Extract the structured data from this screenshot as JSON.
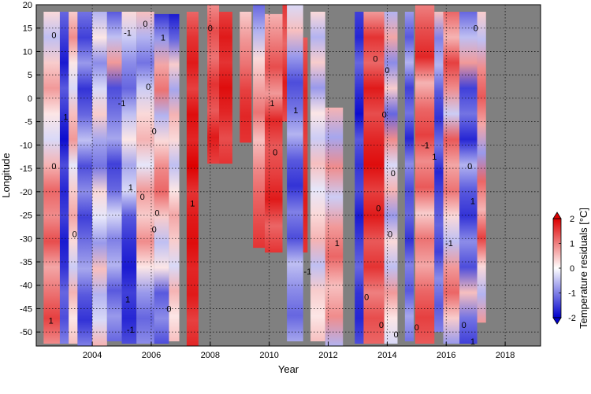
{
  "chart_data": {
    "type": "heatmap",
    "title": "",
    "xlabel": "Year",
    "ylabel": "Longitude",
    "xlim": [
      2002.1,
      2019.2
    ],
    "ylim": [
      -53,
      20
    ],
    "x_ticks": [
      2004,
      2006,
      2008,
      2010,
      2012,
      2014,
      2016,
      2018
    ],
    "y_ticks": [
      20,
      15,
      10,
      5,
      0,
      -5,
      -10,
      -15,
      -20,
      -25,
      -30,
      -35,
      -40,
      -45,
      -50
    ],
    "grid": true,
    "background_color": "#808080",
    "colorbar": {
      "label": "Temperature residuals [°C]",
      "min": -2,
      "max": 2,
      "ticks": [
        2,
        1,
        0,
        -1,
        -2
      ],
      "extend": "both",
      "colors": [
        "#0000cc",
        "#ffffff",
        "#dd0000"
      ]
    },
    "contour_levels": [
      -1,
      0,
      1
    ],
    "contour_label_values": [
      "0",
      "1",
      "-1"
    ],
    "data_strips": [
      {
        "x0": 2002.35,
        "x1": 2002.9,
        "y_top": 18.5,
        "y_bottom": -52.5,
        "values": [
          0.3,
          -0.5,
          0.4,
          0.8,
          0.2,
          -0.3,
          0.6,
          1.2,
          0.9,
          1.4,
          0.7,
          1.1,
          1.5,
          0.9
        ]
      },
      {
        "x0": 2002.9,
        "x1": 2003.2,
        "y_top": 18.5,
        "y_bottom": -52.5,
        "values": [
          -1.2,
          -1.5,
          -1.8,
          -1.3,
          -1.6,
          -1.9,
          -1.4,
          -1.7,
          -1.5,
          -1.8,
          -1.6,
          -1.2,
          -1.4,
          -1.0
        ]
      },
      {
        "x0": 2003.2,
        "x1": 2003.5,
        "y_top": 18.5,
        "y_bottom": -52.5,
        "values": [
          0.4,
          0.9,
          0.2,
          -0.3,
          0.5,
          0.8,
          -0.2,
          0.4,
          0.7,
          0.3,
          -0.4,
          0.6,
          0.2,
          0.5
        ]
      },
      {
        "x0": 2003.5,
        "x1": 2004.0,
        "y_top": 18.5,
        "y_bottom": -53.0,
        "values": [
          -1.1,
          -1.5,
          -0.8,
          -1.6,
          -1.2,
          -0.5,
          -1.4,
          -0.9,
          -1.5,
          -1.1,
          -0.7,
          -1.3,
          -1.6,
          -1.0
        ]
      },
      {
        "x0": 2004.0,
        "x1": 2004.5,
        "y_top": 18.5,
        "y_bottom": -53.0,
        "values": [
          -0.6,
          0.2,
          -0.9,
          -0.3,
          0.4,
          -0.7,
          -1.1,
          0.3,
          -0.2,
          -0.8,
          0.5,
          -0.6,
          -0.3,
          0.6
        ]
      },
      {
        "x0": 2004.5,
        "x1": 2005.0,
        "y_top": 18.5,
        "y_bottom": -52.0,
        "values": [
          -1.3,
          -0.5,
          0.8,
          -1.4,
          -1.1,
          -0.7,
          -1.5,
          -1.2,
          -0.3,
          -1.0,
          -0.6,
          -1.3,
          -0.8,
          -1.2
        ]
      },
      {
        "x0": 2005.0,
        "x1": 2005.5,
        "y_top": 18.5,
        "y_bottom": -52.5,
        "values": [
          0.3,
          -0.4,
          -0.9,
          -1.2,
          -0.5,
          0.2,
          -0.7,
          -0.3,
          -1.3,
          -1.6,
          -1.8,
          -1.5,
          -1.7,
          -1.4
        ]
      },
      {
        "x0": 2005.5,
        "x1": 2006.1,
        "y_top": 18.5,
        "y_bottom": -52.5,
        "values": [
          0.5,
          -0.6,
          -1.1,
          -0.4,
          0.3,
          0.6,
          -0.2,
          0.8,
          0.4,
          0.9,
          0.2,
          -0.8,
          -1.2,
          -0.9
        ]
      },
      {
        "x0": 2006.1,
        "x1": 2006.6,
        "y_top": 18.0,
        "y_bottom": -52.5,
        "values": [
          -1.6,
          -0.8,
          0.7,
          1.1,
          -0.6,
          0.3,
          0.9,
          1.2,
          0.4,
          -0.5,
          0.2,
          -1.3,
          -0.9,
          -1.4
        ]
      },
      {
        "x0": 2006.6,
        "x1": 2006.95,
        "y_top": 18.0,
        "y_bottom": -52.0,
        "values": [
          -1.8,
          -1.2,
          0.4,
          -0.7,
          0.6,
          0.3,
          -0.5,
          0.2,
          0.7,
          0.4,
          -0.3,
          0.6,
          0.2,
          0.5
        ]
      },
      {
        "x0": 2007.2,
        "x1": 2007.6,
        "y_top": 18.5,
        "y_bottom": -53.0,
        "values": [
          1.2,
          1.6,
          1.8,
          1.5,
          1.9,
          1.7,
          2.0,
          1.6,
          1.8,
          1.9,
          1.7,
          1.8,
          1.5,
          1.7
        ]
      },
      {
        "x0": 2007.9,
        "x1": 2008.3,
        "y_top": 20.0,
        "y_bottom": -14.0,
        "values": [
          0.9,
          1.4,
          1.1,
          1.6,
          1.3,
          1.8,
          1.5
        ]
      },
      {
        "x0": 2008.3,
        "x1": 2008.75,
        "y_top": 18.5,
        "y_bottom": -14.0,
        "values": [
          1.5,
          1.8,
          1.6,
          1.9,
          1.7,
          1.4,
          1.6
        ]
      },
      {
        "x0": 2009.0,
        "x1": 2009.4,
        "y_top": 18.5,
        "y_bottom": -9.5,
        "values": [
          0.4,
          0.8,
          1.1,
          1.5,
          1.7,
          1.6
        ]
      },
      {
        "x0": 2009.45,
        "x1": 2009.85,
        "y_top": 20.0,
        "y_bottom": -32.0,
        "values": [
          -1.2,
          -0.6,
          0.3,
          0.7,
          1.1,
          0.5,
          0.9,
          1.2,
          1.4,
          1.6
        ]
      },
      {
        "x0": 2009.85,
        "x1": 2010.45,
        "y_top": 18.0,
        "y_bottom": -33.0,
        "values": [
          0.6,
          1.0,
          1.4,
          0.8,
          1.7,
          1.3,
          1.5,
          1.8,
          1.2,
          1.6
        ]
      },
      {
        "x0": 2010.45,
        "x1": 2010.6,
        "y_top": 20.0,
        "y_bottom": -5.0,
        "values": [
          1.6,
          1.2,
          1.8,
          1.4
        ]
      },
      {
        "x0": 2010.6,
        "x1": 2011.15,
        "y_top": 20.0,
        "y_bottom": -52.0,
        "values": [
          -0.3,
          0.5,
          -0.8,
          -1.4,
          -1.1,
          -0.6,
          -1.3,
          -1.6,
          -1.0,
          -1.4,
          -0.5,
          -0.9,
          -1.2,
          -0.7
        ]
      },
      {
        "x0": 2011.15,
        "x1": 2011.3,
        "y_top": 13.0,
        "y_bottom": -33.0,
        "values": [
          1.3,
          1.7,
          1.5,
          1.8,
          1.6
        ]
      },
      {
        "x0": 2011.4,
        "x1": 2011.9,
        "y_top": 18.5,
        "y_bottom": -52.0,
        "values": [
          0.3,
          -0.6,
          0.4,
          -0.8,
          0.2,
          -0.4,
          0.5,
          -0.2,
          0.3,
          0.6,
          -0.5,
          0.4,
          0.2,
          0.5
        ]
      },
      {
        "x0": 2011.9,
        "x1": 2012.5,
        "y_top": -2.0,
        "y_bottom": -53.0,
        "values": [
          0.6,
          -0.7,
          0.9,
          -0.4,
          0.8,
          1.2,
          0.5,
          0.9,
          -0.6
        ]
      },
      {
        "x0": 2012.9,
        "x1": 2013.2,
        "y_top": 18.5,
        "y_bottom": -52.5,
        "values": [
          -1.5,
          -1.7,
          -1.2,
          -1.6,
          -1.9,
          -1.3,
          -1.6,
          -1.4,
          -1.8,
          -1.5,
          -1.2,
          -1.6,
          -1.7,
          -1.4
        ]
      },
      {
        "x0": 2013.2,
        "x1": 2013.9,
        "y_top": 18.5,
        "y_bottom": -52.5,
        "values": [
          0.8,
          1.6,
          1.2,
          1.8,
          1.4,
          1.7,
          1.9,
          1.5,
          1.8,
          1.3,
          1.6,
          1.0,
          1.4,
          1.2
        ]
      },
      {
        "x0": 2013.9,
        "x1": 2014.35,
        "y_top": 18.5,
        "y_bottom": -52.5,
        "values": [
          -0.6,
          0.7,
          -0.9,
          0.4,
          -1.2,
          0.9,
          -0.3,
          0.6,
          -0.8,
          0.3,
          -0.5,
          0.8,
          0.2,
          -0.3
        ]
      },
      {
        "x0": 2014.6,
        "x1": 2014.9,
        "y_top": 18.5,
        "y_bottom": -52.0,
        "values": [
          -0.8,
          -1.3,
          -0.6,
          -1.5,
          -1.1,
          -1.7,
          -0.9,
          -1.4,
          -1.2,
          -1.6,
          -1.0,
          -1.3,
          -0.7,
          -1.1
        ]
      },
      {
        "x0": 2014.95,
        "x1": 2015.6,
        "y_top": 20.0,
        "y_bottom": -52.5,
        "values": [
          1.0,
          1.4,
          1.7,
          0.6,
          1.2,
          1.5,
          0.9,
          1.3,
          0.4,
          1.1,
          0.7,
          1.2,
          1.5,
          1.3
        ]
      },
      {
        "x0": 2015.6,
        "x1": 2015.9,
        "y_top": 18.5,
        "y_bottom": -50.0,
        "values": [
          0.5,
          -1.0,
          -0.6,
          -1.3,
          -1.6,
          -1.1,
          -1.7,
          -1.4,
          -1.2,
          -1.5,
          -0.9,
          -1.3,
          -1.0
        ]
      },
      {
        "x0": 2015.9,
        "x1": 2016.45,
        "y_top": 18.5,
        "y_bottom": -52.5,
        "values": [
          1.2,
          0.6,
          1.5,
          0.9,
          -0.4,
          1.3,
          0.7,
          1.1,
          0.3,
          -0.5,
          0.8,
          1.2,
          0.4,
          -0.8
        ]
      },
      {
        "x0": 2016.45,
        "x1": 2017.05,
        "y_top": 18.5,
        "y_bottom": -52.5,
        "values": [
          -1.2,
          -0.5,
          0.8,
          -1.5,
          -1.1,
          -1.7,
          -0.6,
          -1.3,
          -1.6,
          -0.9,
          -1.4,
          0.5,
          -1.1,
          -1.5
        ]
      },
      {
        "x0": 2017.05,
        "x1": 2017.35,
        "y_top": 18.5,
        "y_bottom": -48.0,
        "values": [
          0.4,
          -0.5,
          0.9,
          1.3,
          0.7,
          -0.8,
          1.2,
          0.6,
          1.5,
          0.3,
          -0.6,
          0.8
        ]
      }
    ]
  }
}
